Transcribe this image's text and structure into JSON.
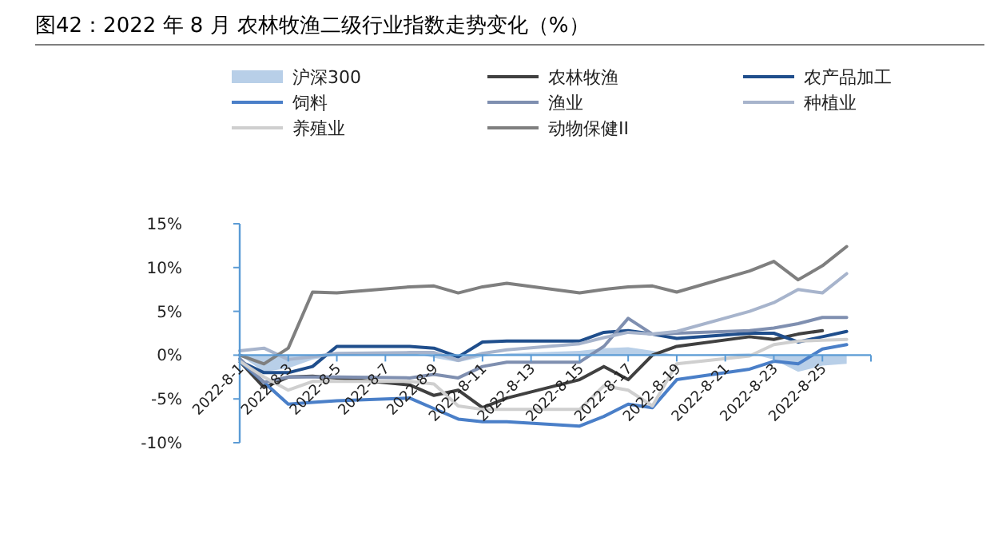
{
  "chart_data": {
    "type": "line",
    "title": "图42：2022 年 8 月 农林牧渔二级行业指数走势变化（%）",
    "x": [
      "2022-08-01",
      "2022-08-02",
      "2022-08-03",
      "2022-08-04",
      "2022-08-05",
      "2022-08-08",
      "2022-08-09",
      "2022-08-10",
      "2022-08-11",
      "2022-08-12",
      "2022-08-15",
      "2022-08-16",
      "2022-08-17",
      "2022-08-18",
      "2022-08-19",
      "2022-08-22",
      "2022-08-23",
      "2022-08-24",
      "2022-08-25",
      "2022-08-26"
    ],
    "series": [
      {
        "name": "沪深300",
        "type": "area",
        "color": "#b8cfe8",
        "values": [
          0,
          -1.9,
          -1.5,
          -0.5,
          0,
          0.3,
          -0.3,
          -0.8,
          -0.2,
          0.2,
          0.5,
          0.8,
          0.9,
          0.5,
          0,
          0.2,
          -0.5,
          -1.9,
          -1.2,
          -1.0
        ]
      },
      {
        "name": "农林牧渔",
        "color": "#404040",
        "values": [
          -0.7,
          -3.7,
          -2.5,
          -2.4,
          -2.6,
          -3.4,
          -4.6,
          -4.0,
          -6.0,
          -4.9,
          -2.8,
          -1.3,
          -2.8,
          0,
          1.0,
          2.1,
          1.8,
          2.4,
          2.8,
          null
        ]
      },
      {
        "name": "农产品加工",
        "color": "#1f4e8c",
        "values": [
          -0.7,
          -2.0,
          -2.0,
          -1.3,
          1.0,
          1.0,
          0.8,
          -0.2,
          1.5,
          1.6,
          1.6,
          2.6,
          2.8,
          2.4,
          1.9,
          2.5,
          2.5,
          1.5,
          2.1,
          2.7
        ]
      },
      {
        "name": "饲料",
        "color": "#4a7fc8",
        "values": [
          -0.7,
          -3.1,
          -5.6,
          -5.4,
          -5.2,
          -4.9,
          -6.1,
          -7.3,
          -7.6,
          -7.6,
          -8.1,
          -7.0,
          -5.6,
          -6.0,
          -2.8,
          -1.6,
          -0.7,
          -1.0,
          0.7,
          1.2
        ]
      },
      {
        "name": "渔业",
        "color": "#7f8fb0",
        "values": [
          -0.4,
          -3.1,
          -2.5,
          -2.5,
          -2.5,
          -2.6,
          -2.2,
          -2.6,
          -1.3,
          -0.8,
          -0.8,
          1.0,
          4.2,
          2.4,
          2.5,
          2.8,
          3.1,
          3.6,
          4.3,
          4.3
        ]
      },
      {
        "name": "种植业",
        "color": "#a7b4cc",
        "values": [
          0.5,
          0.8,
          -0.5,
          -0.2,
          0.2,
          0.3,
          0.3,
          -0.6,
          0.2,
          0.6,
          1.3,
          2.0,
          2.6,
          2.4,
          2.7,
          5.0,
          6.0,
          7.5,
          7.1,
          9.3
        ]
      },
      {
        "name": "养殖业",
        "color": "#cfcfcf",
        "values": [
          -0.7,
          -2.5,
          -4.0,
          -3.0,
          -3.0,
          -3.0,
          -3.3,
          -5.8,
          -6.2,
          -6.2,
          -6.2,
          -3.5,
          -4.0,
          -5.8,
          -1.0,
          -0.1,
          1.2,
          1.6,
          1.7,
          1.8
        ]
      },
      {
        "name": "动物保健II",
        "color": "#7f7f7f",
        "values": [
          0,
          -1.0,
          0.8,
          7.2,
          7.1,
          7.8,
          7.9,
          7.1,
          7.8,
          8.2,
          7.1,
          7.5,
          7.8,
          7.9,
          7.2,
          9.6,
          10.7,
          8.6,
          10.2,
          12.4
        ]
      }
    ],
    "xlim": [
      "2022-08-01",
      "2022-08-27"
    ],
    "xticks": [
      {
        "value": "2022-08-01",
        "label": "2022-8-1"
      },
      {
        "value": "2022-08-03",
        "label": "2022-8-3"
      },
      {
        "value": "2022-08-05",
        "label": "2022-8-5"
      },
      {
        "value": "2022-08-07",
        "label": "2022-8-7"
      },
      {
        "value": "2022-08-09",
        "label": "2022-8-9"
      },
      {
        "value": "2022-08-11",
        "label": "2022-8-11"
      },
      {
        "value": "2022-08-13",
        "label": "2022-8-13"
      },
      {
        "value": "2022-08-15",
        "label": "2022-8-15"
      },
      {
        "value": "2022-08-17",
        "label": "2022-8-17"
      },
      {
        "value": "2022-08-19",
        "label": "2022-8-19"
      },
      {
        "value": "2022-08-21",
        "label": "2022-8-21"
      },
      {
        "value": "2022-08-23",
        "label": "2022-8-23"
      },
      {
        "value": "2022-08-25",
        "label": "2022-8-25"
      },
      {
        "value": "2022-08-27",
        "label": null
      }
    ],
    "ylim": [
      -10,
      15
    ],
    "yticks": [
      {
        "value": -10,
        "label": "-10%"
      },
      {
        "value": -5,
        "label": "-5%"
      },
      {
        "value": 0,
        "label": "0%"
      },
      {
        "value": 5,
        "label": "5%"
      },
      {
        "value": 10,
        "label": "10%"
      },
      {
        "value": 15,
        "label": "15%"
      }
    ],
    "legend": "top"
  }
}
